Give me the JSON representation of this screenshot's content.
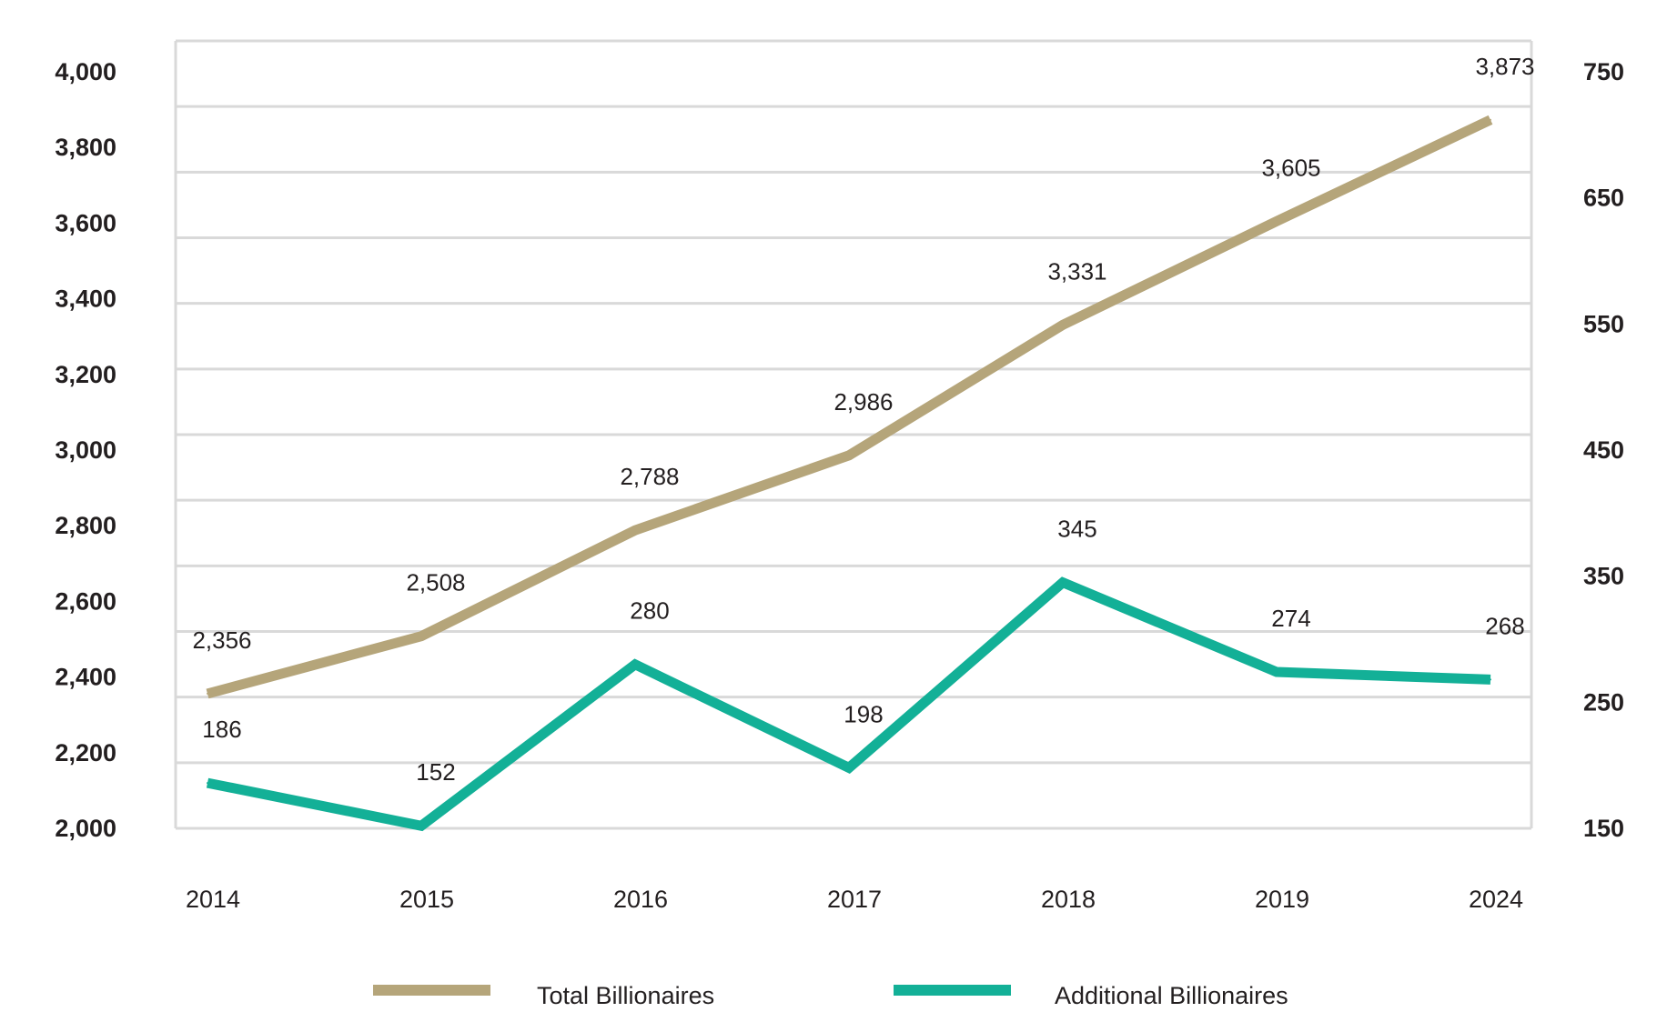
{
  "chart_data": {
    "type": "line",
    "categories": [
      "2014",
      "2015",
      "2016",
      "2017",
      "2018",
      "2019",
      "2024"
    ],
    "series": [
      {
        "name": "Total Billionaires",
        "axis": "left",
        "color": "#b5a57a",
        "values": [
          2356,
          2508,
          2788,
          2986,
          3331,
          3605,
          3873
        ],
        "labels": [
          "2,356",
          "2,508",
          "2,788",
          "2,986",
          "3,331",
          "3,605",
          "3,873"
        ]
      },
      {
        "name": "Additional Billionaires",
        "axis": "right",
        "color": "#13b097",
        "values": [
          186,
          152,
          280,
          198,
          345,
          274,
          268
        ],
        "labels": [
          "186",
          "152",
          "280",
          "198",
          "345",
          "274",
          "268"
        ]
      }
    ],
    "left_axis": {
      "ylim": [
        2000,
        4000
      ],
      "ticks": [
        2000,
        2200,
        2400,
        2600,
        2800,
        3000,
        3200,
        3400,
        3600,
        3800,
        4000
      ],
      "tick_labels": [
        "2,000",
        "2,200",
        "2,400",
        "2,600",
        "2,800",
        "3,000",
        "3,200",
        "3,400",
        "3,600",
        "3,800",
        "4,000"
      ]
    },
    "right_axis": {
      "ylim": [
        150,
        750
      ],
      "ticks": [
        150,
        250,
        350,
        450,
        550,
        650,
        750
      ],
      "tick_labels": [
        "150",
        "250",
        "350",
        "450",
        "550",
        "650",
        "750"
      ]
    },
    "grid": true,
    "legend_position": "bottom-center"
  }
}
